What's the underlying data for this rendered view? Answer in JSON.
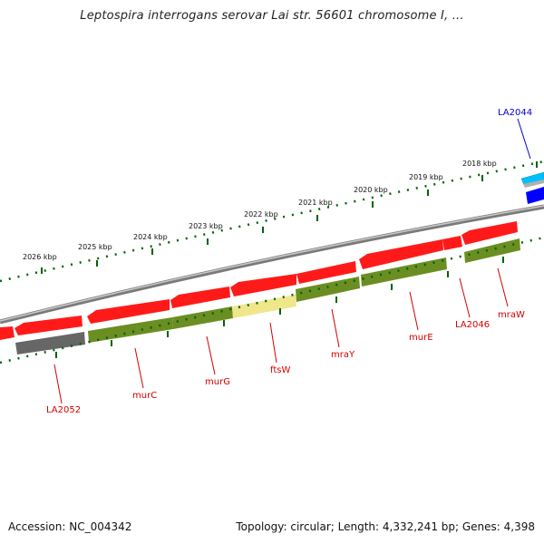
{
  "title": "Leptospira interrogans serovar Lai str. 56601 chromosome I, ...",
  "footer": {
    "accession": "Accession: NC_004342",
    "summary": "Topology: circular; Length: 4,332,241 bp; Genes: 4,398"
  },
  "scale_labels": [
    "2026 kbp",
    "2025 kbp",
    "2024 kbp",
    "2023 kbp",
    "2022 kbp",
    "2021 kbp",
    "2020 kbp",
    "2019 kbp",
    "2018 kbp"
  ],
  "gene_labels": {
    "LA2044": "LA2044",
    "LA2052": "LA2052",
    "murC": "murC",
    "murG": "murG",
    "ftsW": "ftsW",
    "mraY": "mraY",
    "murE": "murE",
    "LA2046": "LA2046",
    "mraW": "mraW"
  },
  "colors": {
    "cds_red": "#ff1a1a",
    "gene_green": "#6b8e23",
    "gene_grey": "#666666",
    "gene_yellow": "#f0e68c",
    "gene_blue": "#0000ff",
    "gene_cyan": "#00bfff",
    "scale_green": "#006400",
    "backbone": "#808080"
  }
}
